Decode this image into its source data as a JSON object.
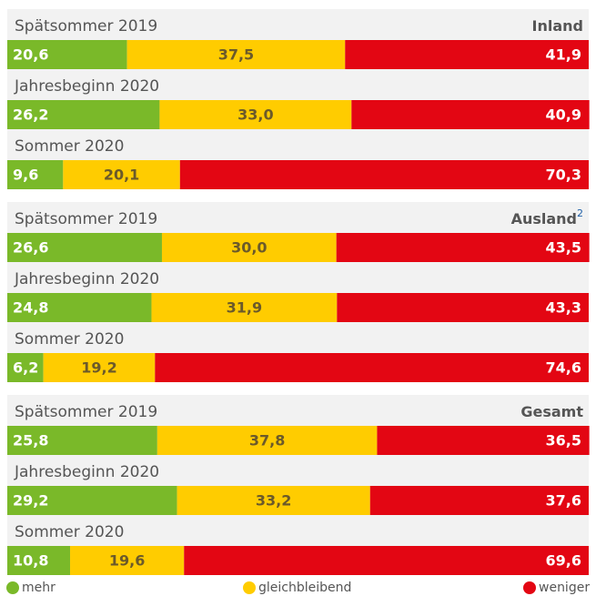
{
  "chart_data": {
    "type": "bar",
    "orientation": "horizontal",
    "stacked": true,
    "xlim": [
      0,
      100
    ],
    "series": [
      {
        "name": "mehr",
        "color": "#7ab929"
      },
      {
        "name": "gleichbleibend",
        "color": "#ffcc00"
      },
      {
        "name": "weniger",
        "color": "#e30613"
      }
    ],
    "groups": [
      {
        "title": "Inland",
        "categories": [
          "Spätsommer 2019",
          "Jahresbeginn 2020",
          "Sommer 2020"
        ],
        "series": [
          {
            "values": [
              20.6,
              26.2,
              9.6
            ],
            "value_labels": [
              "20,6",
              "26,2",
              "9,6"
            ]
          },
          {
            "values": [
              37.5,
              33.0,
              20.1
            ],
            "value_labels": [
              "37,5",
              "33,0",
              "20,1"
            ]
          },
          {
            "values": [
              41.9,
              40.9,
              70.3
            ],
            "value_labels": [
              "41,9",
              "40,9",
              "70,3"
            ]
          }
        ]
      },
      {
        "title": "Ausland",
        "title_sup": "2",
        "categories": [
          "Spätsommer 2019",
          "Jahresbeginn 2020",
          "Sommer 2020"
        ],
        "series": [
          {
            "values": [
              26.6,
              24.8,
              6.2
            ],
            "value_labels": [
              "26,6",
              "24,8",
              "6,2"
            ]
          },
          {
            "values": [
              30.0,
              31.9,
              19.2
            ],
            "value_labels": [
              "30,0",
              "31,9",
              "19,2"
            ]
          },
          {
            "values": [
              43.5,
              43.3,
              74.6
            ],
            "value_labels": [
              "43,5",
              "43,3",
              "74,6"
            ]
          }
        ]
      },
      {
        "title": "Gesamt",
        "categories": [
          "Spätsommer 2019",
          "Jahresbeginn 2020",
          "Sommer 2020"
        ],
        "series": [
          {
            "values": [
              25.8,
              29.2,
              10.8
            ],
            "value_labels": [
              "25,8",
              "29,2",
              "10,8"
            ]
          },
          {
            "values": [
              37.8,
              33.2,
              19.6
            ],
            "value_labels": [
              "37,8",
              "33,2",
              "19,6"
            ]
          },
          {
            "values": [
              36.5,
              37.6,
              69.6
            ],
            "value_labels": [
              "36,5",
              "37,6",
              "69,6"
            ]
          }
        ]
      }
    ]
  }
}
